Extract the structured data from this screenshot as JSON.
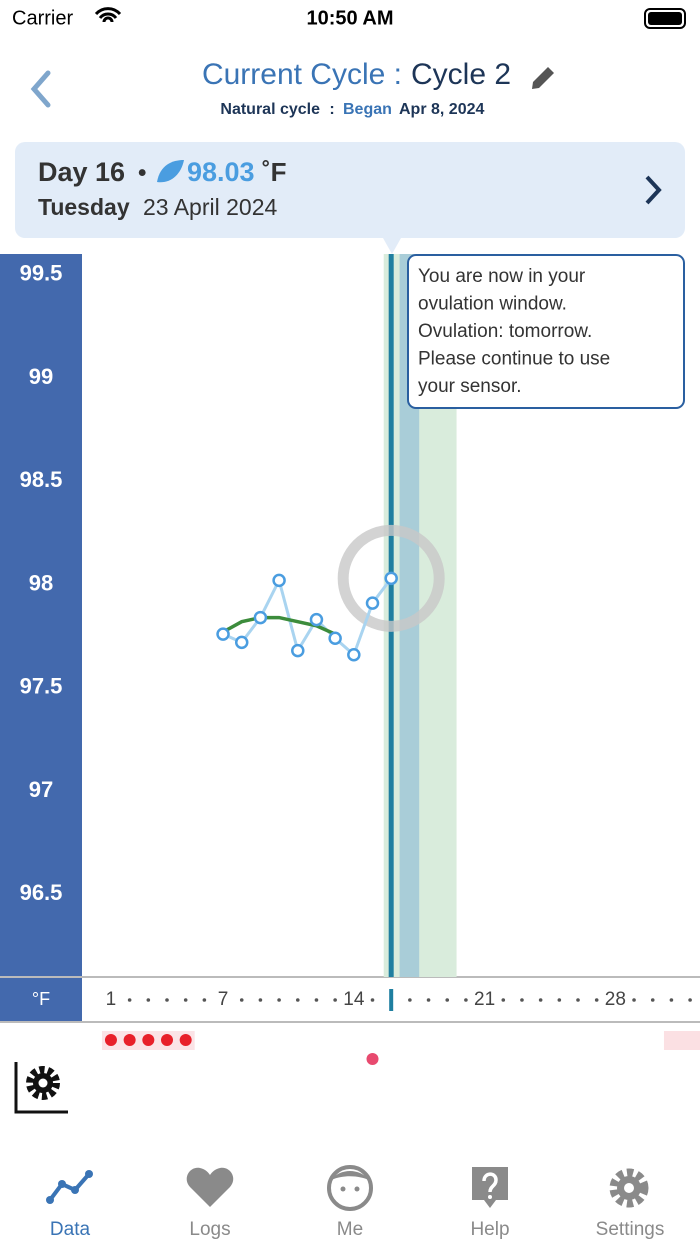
{
  "status_bar": {
    "carrier": "Carrier",
    "time": "10:50 AM"
  },
  "header": {
    "title_prefix": "Current Cycle :",
    "title_cycle": "Cycle 2",
    "cycle_type": "Natural cycle",
    "separator": ":",
    "began_label": "Began",
    "began_date": "Apr 8, 2024"
  },
  "day_card": {
    "day": "Day 16",
    "bullet": "•",
    "temperature": "98.03",
    "unit": "˚F",
    "weekday": "Tuesday",
    "date": "23 April 2024"
  },
  "tooltip": {
    "lines": [
      "You are now in your",
      "ovulation window.",
      "Ovulation: tomorrow.",
      "Please continue to use",
      "your sensor."
    ]
  },
  "chart_data": {
    "type": "line",
    "unit_label": "°F",
    "x": [
      7,
      8,
      9,
      10,
      11,
      12,
      13,
      14,
      15,
      16
    ],
    "series": [
      {
        "color": "#a9d4f0",
        "values": [
          97.76,
          97.72,
          97.84,
          98.02,
          97.68,
          97.83,
          97.74,
          97.66,
          97.91,
          98.03
        ]
      },
      {
        "color": "#3c8c3c",
        "values": [
          97.77,
          97.82,
          97.84,
          97.84,
          97.82,
          97.8,
          97.76,
          null,
          null,
          null
        ]
      }
    ],
    "xlim": [
      -0.55,
      32.53
    ],
    "ylim": [
      96.1,
      99.6
    ],
    "xticks": [
      1,
      7,
      14,
      21,
      28
    ],
    "yticks": [
      99.5,
      99,
      98.5,
      98,
      97.5,
      97,
      96.5
    ],
    "grid": false,
    "selected_day": 16,
    "fertile_window": [
      15.6,
      19.5
    ],
    "ovulation_window": [
      16.45,
      17.5
    ],
    "period_days": [
      1,
      2,
      3,
      4,
      5
    ],
    "marker_days": [
      15
    ],
    "next_period_start": 30.6
  },
  "tab_bar": {
    "tabs": [
      "Data",
      "Logs",
      "Me",
      "Help",
      "Settings"
    ]
  }
}
